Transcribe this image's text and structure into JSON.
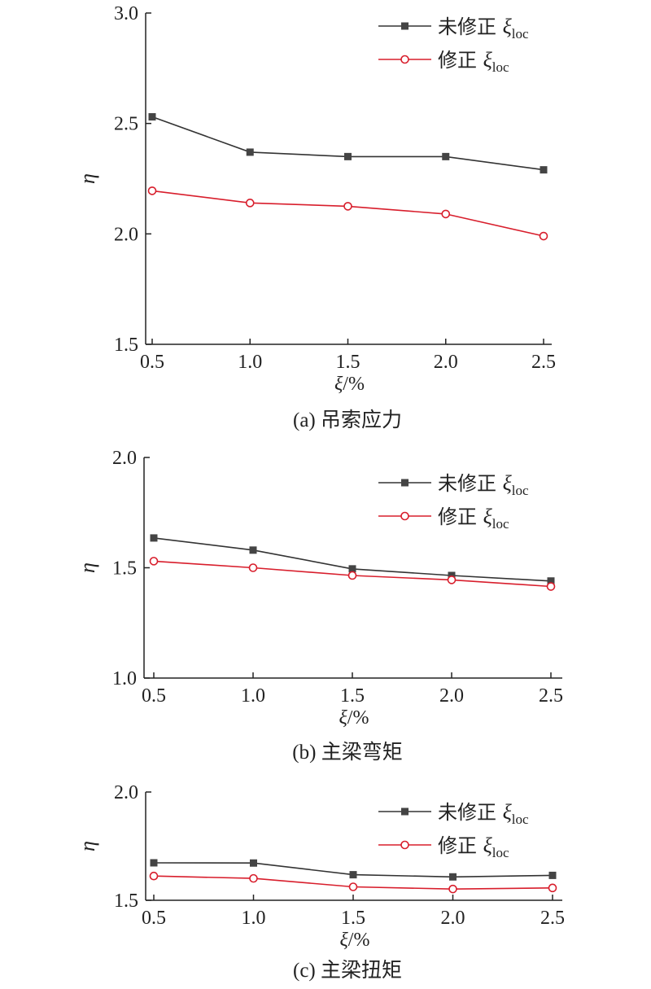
{
  "legend": {
    "series1_prefix": "未修正",
    "series2_prefix": "修正",
    "symbol": "ξ",
    "subscript": "loc"
  },
  "colors": {
    "series1": "#333333",
    "series2": "#d81e2c",
    "axis": "#222222"
  },
  "chart_data": [
    {
      "type": "line",
      "caption": "(a) 吊索应力",
      "xlabel_symbol": "ξ",
      "xlabel_unit": "/%",
      "ylabel": "η",
      "x": [
        0.5,
        1.0,
        1.5,
        2.0,
        2.5
      ],
      "xticks": [
        "0.5",
        "1.0",
        "1.5",
        "2.0",
        "2.5"
      ],
      "yticks": [
        "1.5",
        "2.0",
        "2.5",
        "3.0"
      ],
      "ylim": [
        1.5,
        3.0
      ],
      "xlim": [
        0.5,
        2.5
      ],
      "series": [
        {
          "name": "未修正 ξloc",
          "marker": "filled-square",
          "values": [
            2.53,
            2.37,
            2.35,
            2.35,
            2.29
          ]
        },
        {
          "name": "修正 ξloc",
          "marker": "open-circle",
          "values": [
            2.195,
            2.14,
            2.125,
            2.09,
            1.99
          ]
        }
      ]
    },
    {
      "type": "line",
      "caption": "(b) 主梁弯矩",
      "xlabel_symbol": "ξ",
      "xlabel_unit": "/%",
      "ylabel": "η",
      "x": [
        0.5,
        1.0,
        1.5,
        2.0,
        2.5
      ],
      "xticks": [
        "0.5",
        "1.0",
        "1.5",
        "2.0",
        "2.5"
      ],
      "yticks": [
        "1.0",
        "1.5",
        "2.0"
      ],
      "ylim": [
        1.0,
        2.0
      ],
      "xlim": [
        0.5,
        2.5
      ],
      "series": [
        {
          "name": "未修正 ξloc",
          "marker": "filled-square",
          "values": [
            1.635,
            1.58,
            1.495,
            1.465,
            1.44
          ]
        },
        {
          "name": "修正 ξloc",
          "marker": "open-circle",
          "values": [
            1.53,
            1.5,
            1.465,
            1.445,
            1.415
          ]
        }
      ]
    },
    {
      "type": "line",
      "caption": "(c) 主梁扭矩",
      "xlabel_symbol": "ξ",
      "xlabel_unit": "/%",
      "ylabel": "η",
      "x": [
        0.5,
        1.0,
        1.5,
        2.0,
        2.5
      ],
      "xticks": [
        "0.5",
        "1.0",
        "1.5",
        "2.0",
        "2.5"
      ],
      "yticks": [
        "1.5",
        "2.0"
      ],
      "ylim": [
        1.5,
        2.0
      ],
      "xlim": [
        0.5,
        2.5
      ],
      "series": [
        {
          "name": "未修正 ξloc",
          "marker": "filled-square",
          "values": [
            1.673,
            1.672,
            1.618,
            1.608,
            1.615
          ]
        },
        {
          "name": "修正 ξloc",
          "marker": "open-circle",
          "values": [
            1.612,
            1.601,
            1.562,
            1.552,
            1.557
          ]
        }
      ]
    }
  ]
}
